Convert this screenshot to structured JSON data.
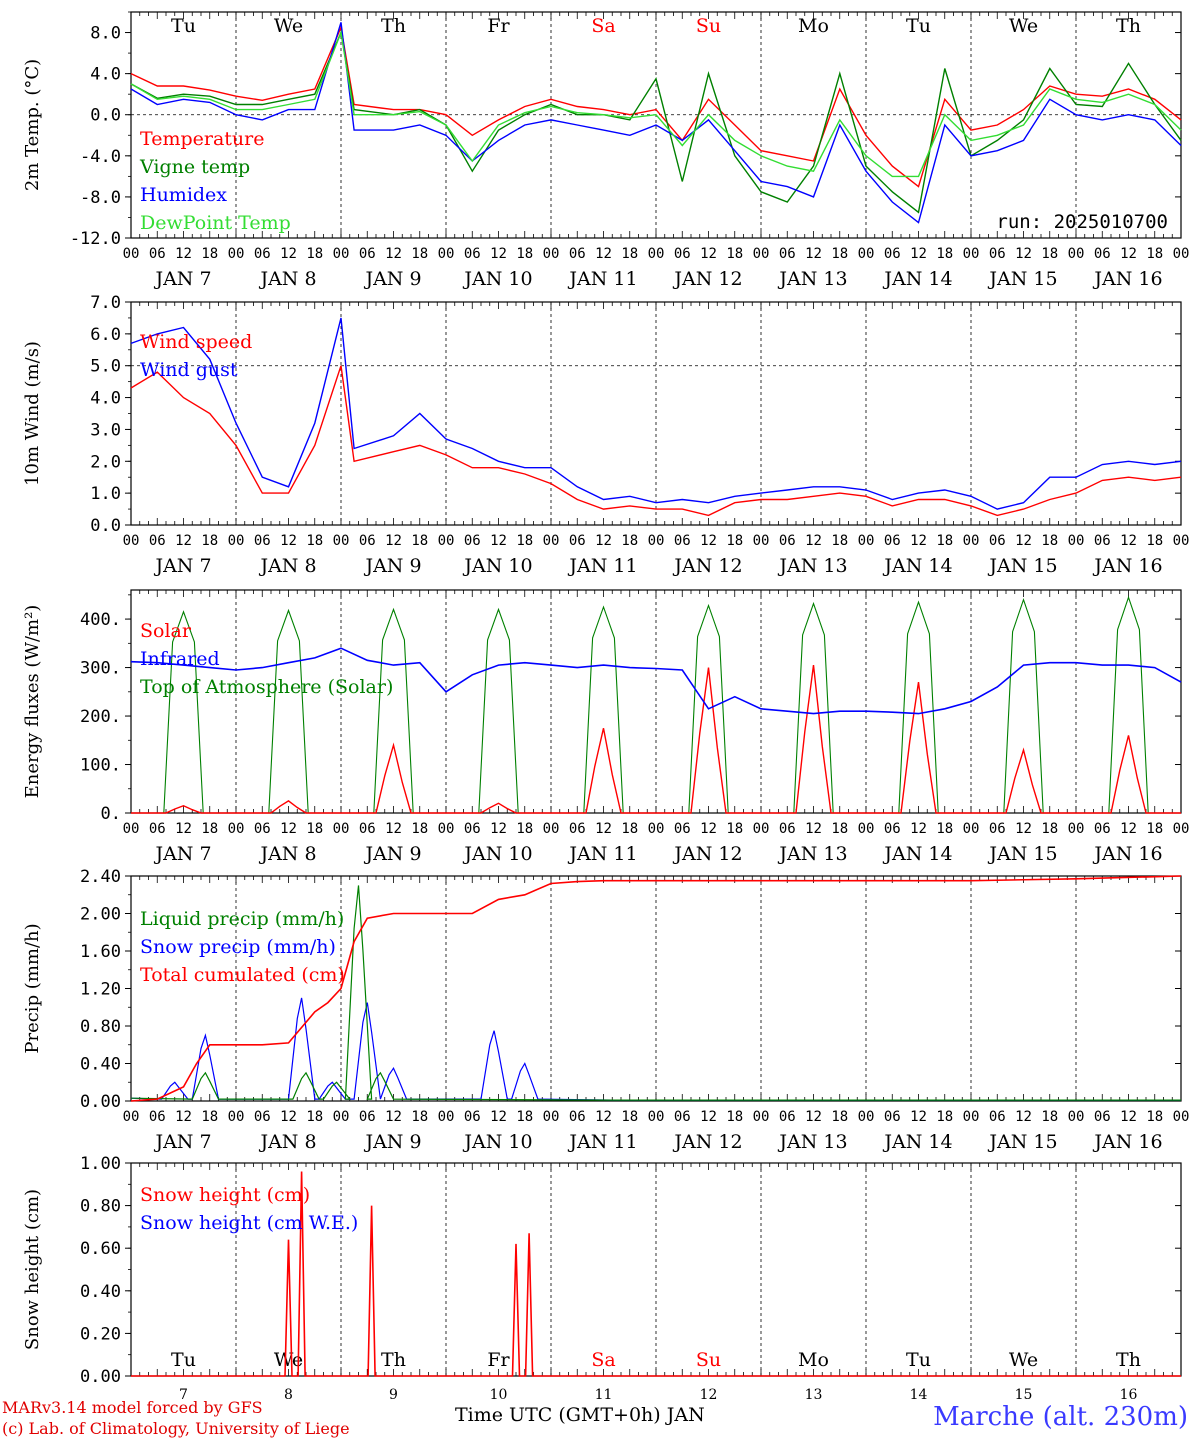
{
  "run_label": "run: 2025010700",
  "footer": {
    "model": "MARv3.14 model forced by GFS",
    "lab": "(c) Lab. of Climatology, University of Liege",
    "xlabel": "Time UTC (GMT+0h) JAN",
    "station": "Marche (alt. 230m)"
  },
  "days": {
    "weekday_names": [
      "Tu",
      "We",
      "Th",
      "Fr",
      "Sa",
      "Su",
      "Mo",
      "Tu",
      "We",
      "Th"
    ],
    "weekend_flags": [
      false,
      false,
      false,
      false,
      true,
      true,
      false,
      false,
      false,
      false
    ],
    "date_labels": [
      "JAN  7",
      "JAN  8",
      "JAN  9",
      "JAN 10",
      "JAN 11",
      "JAN 12",
      "JAN 13",
      "JAN 14",
      "JAN 15",
      "JAN 16"
    ],
    "day_numbers": [
      "7",
      "8",
      "9",
      "10",
      "11",
      "12",
      "13",
      "14",
      "15",
      "16"
    ],
    "hour_ticks": [
      "00",
      "06",
      "12",
      "18"
    ],
    "end_tick": "00"
  },
  "colors": {
    "red": "#ff0000",
    "green": "#008000",
    "blue": "#0000ff",
    "lightgreen": "#33dd33",
    "station": "#3a3aff"
  },
  "chart_data": [
    {
      "type": "line",
      "ylabel": "2m Temp. (°C)",
      "ylim": [
        -12,
        10
      ],
      "yticks": [
        "8.0",
        "4.0",
        "0.0",
        "-4.0",
        "-8.0",
        "-12.0"
      ],
      "x_hours": [
        0,
        6,
        12,
        18,
        24,
        30,
        36,
        42,
        48,
        51,
        60,
        66,
        72,
        78,
        84,
        90,
        96,
        102,
        108,
        114,
        120,
        126,
        132,
        138,
        144,
        150,
        156,
        162,
        168,
        174,
        180,
        186,
        192,
        198,
        204,
        210,
        216,
        222,
        228,
        234,
        240
      ],
      "series": [
        {
          "name": "Temperature",
          "color": "red",
          "values": [
            4.0,
            2.8,
            2.8,
            2.4,
            1.8,
            1.4,
            2.0,
            2.5,
            8.5,
            1.0,
            0.5,
            0.5,
            0.0,
            -2.0,
            -0.5,
            0.8,
            1.5,
            0.8,
            0.5,
            0.0,
            0.5,
            -2.5,
            1.5,
            -1.0,
            -3.5,
            -4.0,
            -4.5,
            2.5,
            -2.0,
            -5.0,
            -7.0,
            1.5,
            -1.5,
            -1.0,
            0.5,
            2.8,
            2.0,
            1.8,
            2.5,
            1.5,
            -0.5
          ]
        },
        {
          "name": "Vigne temp",
          "color": "green",
          "values": [
            3.0,
            1.6,
            2.0,
            1.8,
            1.0,
            1.0,
            1.5,
            2.0,
            8.0,
            0.5,
            0.0,
            0.5,
            -1.0,
            -5.5,
            -1.5,
            0.0,
            1.0,
            0.0,
            0.0,
            -0.5,
            3.5,
            -6.5,
            4.0,
            -4.0,
            -7.5,
            -8.5,
            -5.0,
            4.0,
            -5.0,
            -7.5,
            -9.5,
            4.5,
            -4.0,
            -2.5,
            -0.5,
            4.5,
            1.0,
            0.8,
            5.0,
            1.0,
            -2.5
          ]
        },
        {
          "name": "Humidex",
          "color": "blue",
          "values": [
            2.5,
            1.0,
            1.5,
            1.2,
            0.0,
            -0.5,
            0.5,
            0.5,
            9.0,
            -1.5,
            -1.5,
            -1.0,
            -2.0,
            -4.5,
            -2.5,
            -1.0,
            -0.5,
            -1.0,
            -1.5,
            -2.0,
            -1.0,
            -2.5,
            -0.5,
            -3.5,
            -6.5,
            -7.0,
            -8.0,
            -1.0,
            -5.5,
            -8.5,
            -10.5,
            -1.0,
            -4.0,
            -3.5,
            -2.5,
            1.5,
            0.0,
            -0.5,
            0.0,
            -0.5,
            -3.0
          ]
        },
        {
          "name": "DewPoint Temp",
          "color": "lightgreen",
          "values": [
            3.0,
            1.5,
            1.8,
            1.5,
            0.5,
            0.5,
            1.0,
            1.5,
            8.0,
            0.0,
            0.0,
            0.3,
            -1.0,
            -4.5,
            -1.0,
            0.2,
            0.8,
            0.2,
            0.0,
            -0.3,
            0.0,
            -3.0,
            0.0,
            -2.5,
            -4.0,
            -5.0,
            -5.5,
            -0.5,
            -4.0,
            -6.0,
            -6.0,
            0.0,
            -2.5,
            -2.0,
            -1.0,
            2.5,
            1.5,
            1.2,
            2.0,
            1.0,
            -1.5
          ]
        }
      ],
      "refline": 0
    },
    {
      "type": "line",
      "ylabel": "10m Wind (m/s)",
      "ylim": [
        0,
        7
      ],
      "yticks": [
        "7.0",
        "6.0",
        "5.0",
        "4.0",
        "3.0",
        "2.0",
        "1.0",
        "0.0"
      ],
      "x_hours": [
        0,
        6,
        12,
        18,
        24,
        30,
        36,
        42,
        48,
        51,
        60,
        66,
        72,
        78,
        84,
        90,
        96,
        102,
        108,
        114,
        120,
        126,
        132,
        138,
        144,
        150,
        156,
        162,
        168,
        174,
        180,
        186,
        192,
        198,
        204,
        210,
        216,
        222,
        228,
        234,
        240
      ],
      "series": [
        {
          "name": "Wind speed",
          "color": "red",
          "values": [
            4.3,
            4.8,
            4.0,
            3.5,
            2.5,
            1.0,
            1.0,
            2.5,
            5.0,
            2.0,
            2.3,
            2.5,
            2.2,
            1.8,
            1.8,
            1.6,
            1.3,
            0.8,
            0.5,
            0.6,
            0.5,
            0.5,
            0.3,
            0.7,
            0.8,
            0.8,
            0.9,
            1.0,
            0.9,
            0.6,
            0.8,
            0.8,
            0.6,
            0.3,
            0.5,
            0.8,
            1.0,
            1.4,
            1.5,
            1.4,
            1.5
          ]
        },
        {
          "name": "Wind gust",
          "color": "blue",
          "values": [
            5.7,
            6.0,
            6.2,
            5.2,
            3.2,
            1.5,
            1.2,
            3.2,
            6.5,
            2.4,
            2.8,
            3.5,
            2.7,
            2.4,
            2.0,
            1.8,
            1.8,
            1.2,
            0.8,
            0.9,
            0.7,
            0.8,
            0.7,
            0.9,
            1.0,
            1.1,
            1.2,
            1.2,
            1.1,
            0.8,
            1.0,
            1.1,
            0.9,
            0.5,
            0.7,
            1.5,
            1.5,
            1.9,
            2.0,
            1.9,
            2.0
          ]
        }
      ],
      "refline": 5
    },
    {
      "type": "line",
      "ylabel": "Energy fluxes (W/m²)",
      "ylim": [
        0,
        460
      ],
      "yticks": [
        "400.",
        "300.",
        "200.",
        "100.",
        "0."
      ],
      "solar_peaks": [
        15,
        25,
        140,
        20,
        175,
        300,
        305,
        270,
        130,
        160
      ],
      "toa_peaks": [
        415,
        418,
        420,
        420,
        425,
        428,
        432,
        435,
        440,
        445
      ],
      "infrared": {
        "x_hours": [
          0,
          6,
          12,
          18,
          24,
          30,
          36,
          42,
          48,
          54,
          60,
          66,
          72,
          78,
          84,
          90,
          96,
          102,
          108,
          114,
          120,
          126,
          132,
          138,
          144,
          150,
          156,
          162,
          168,
          174,
          180,
          186,
          192,
          198,
          204,
          210,
          216,
          222,
          228,
          234,
          240
        ],
        "values": [
          312,
          310,
          305,
          300,
          295,
          300,
          310,
          320,
          340,
          315,
          305,
          310,
          250,
          285,
          305,
          310,
          305,
          300,
          305,
          300,
          298,
          295,
          215,
          240,
          215,
          210,
          205,
          210,
          210,
          208,
          205,
          215,
          230,
          260,
          305,
          310,
          310,
          305,
          305,
          300,
          270
        ]
      },
      "series": [
        {
          "name": "Solar",
          "color": "red"
        },
        {
          "name": "Infrared",
          "color": "blue"
        },
        {
          "name": "Top of Atmosphere (Solar)",
          "color": "green"
        }
      ]
    },
    {
      "type": "line",
      "ylabel": "Precip (mm/h)",
      "ylim": [
        0,
        2.4
      ],
      "yticks": [
        "2.40",
        "2.00",
        "1.60",
        "1.20",
        "0.80",
        "0.40",
        "0.00"
      ],
      "cumulated": {
        "x_hours": [
          0,
          6,
          12,
          15,
          18,
          24,
          30,
          36,
          42,
          45,
          48,
          51,
          54,
          60,
          66,
          72,
          78,
          84,
          90,
          96,
          102,
          108,
          120,
          144,
          168,
          192,
          216,
          240
        ],
        "values": [
          0.0,
          0.02,
          0.15,
          0.4,
          0.6,
          0.6,
          0.6,
          0.62,
          0.95,
          1.05,
          1.2,
          1.7,
          1.95,
          2.0,
          2.0,
          2.0,
          2.0,
          2.15,
          2.2,
          2.32,
          2.34,
          2.35,
          2.35,
          2.35,
          2.35,
          2.35,
          2.37,
          2.4
        ]
      },
      "snow_events": [
        [
          10,
          0.2
        ],
        [
          17,
          0.7
        ],
        [
          39,
          1.1
        ],
        [
          46,
          0.2
        ],
        [
          54,
          1.05
        ],
        [
          60,
          0.35
        ],
        [
          83,
          0.75
        ],
        [
          90,
          0.4
        ]
      ],
      "liquid_events": [
        [
          17,
          0.3
        ],
        [
          40,
          0.3
        ],
        [
          47,
          0.2
        ],
        [
          52,
          2.3
        ],
        [
          57,
          0.3
        ]
      ],
      "series": [
        {
          "name": "Liquid precip (mm/h)",
          "color": "green"
        },
        {
          "name": "Snow precip (mm/h)",
          "color": "blue"
        },
        {
          "name": "Total cumulated (cm)",
          "color": "red"
        }
      ]
    },
    {
      "type": "line",
      "ylabel": "Snow height (cm)",
      "ylim": [
        0,
        1
      ],
      "yticks": [
        "1.00",
        "0.80",
        "0.60",
        "0.40",
        "0.20",
        "0.00"
      ],
      "spikes": [
        [
          36,
          0.64
        ],
        [
          39,
          0.96
        ],
        [
          55,
          0.8
        ],
        [
          88,
          0.62
        ],
        [
          91,
          0.67
        ]
      ],
      "series": [
        {
          "name": "Snow height (cm)",
          "color": "red"
        },
        {
          "name": "Snow height (cm W.E.)",
          "color": "blue"
        }
      ]
    }
  ]
}
